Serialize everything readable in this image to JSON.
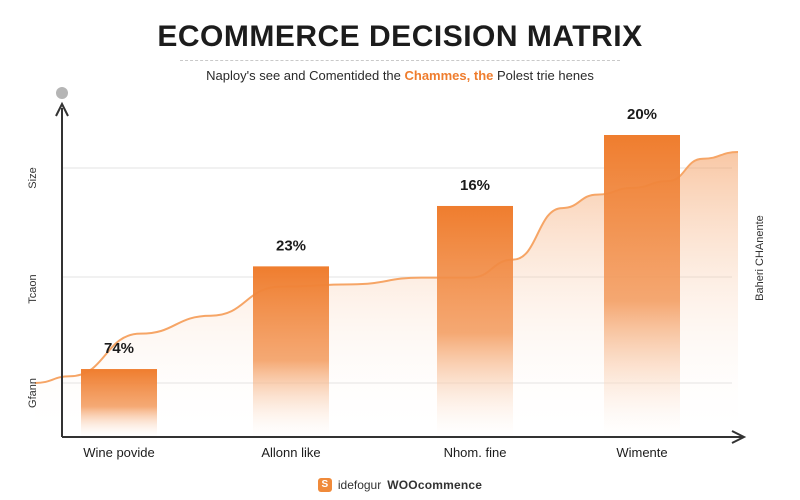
{
  "header": {
    "title": "ECOMMERCE DECISION MATRIX",
    "subtitle_lead": "Naploy's see and Comentided the ",
    "subtitle_highlight": "Chammes, the",
    "subtitle_tail": " Polest trie henes"
  },
  "colors": {
    "accent": "#ef7d2e",
    "accent_light": "#f6a566",
    "axis": "#333333",
    "grid": "#e3e3e3"
  },
  "chart_data": {
    "type": "bar",
    "title": "ECOMMERCE DECISION MATRIX",
    "categories": [
      "Wine povide",
      "Allonn like",
      "Nhom. fine",
      "Wimente"
    ],
    "series": [
      {
        "values": [
          74,
          23,
          16,
          20
        ],
        "data_labels": [
          "74%",
          "23%",
          "16%",
          "20%"
        ],
        "bar_levels": [
          0.225,
          0.565,
          0.765,
          1.0
        ]
      }
    ],
    "y_tick_labels": [
      "Gfann",
      "Tcaon",
      "Size"
    ],
    "right_label": "Baheri CHAnente",
    "trend_area": {
      "x": [
        0,
        0.05,
        0.15,
        0.25,
        0.35,
        0.45,
        0.55,
        0.62,
        0.68,
        0.75,
        0.8,
        0.85,
        0.9,
        0.95,
        1.0
      ],
      "y": [
        0.0,
        0.03,
        0.22,
        0.3,
        0.43,
        0.44,
        0.47,
        0.47,
        0.55,
        0.78,
        0.84,
        0.87,
        0.9,
        1.0,
        1.03
      ]
    },
    "grid": true,
    "legend": "none"
  },
  "footer": {
    "icon": "shopping-bag-icon",
    "prefix": "idefogur",
    "brand": "WOOcommence"
  }
}
